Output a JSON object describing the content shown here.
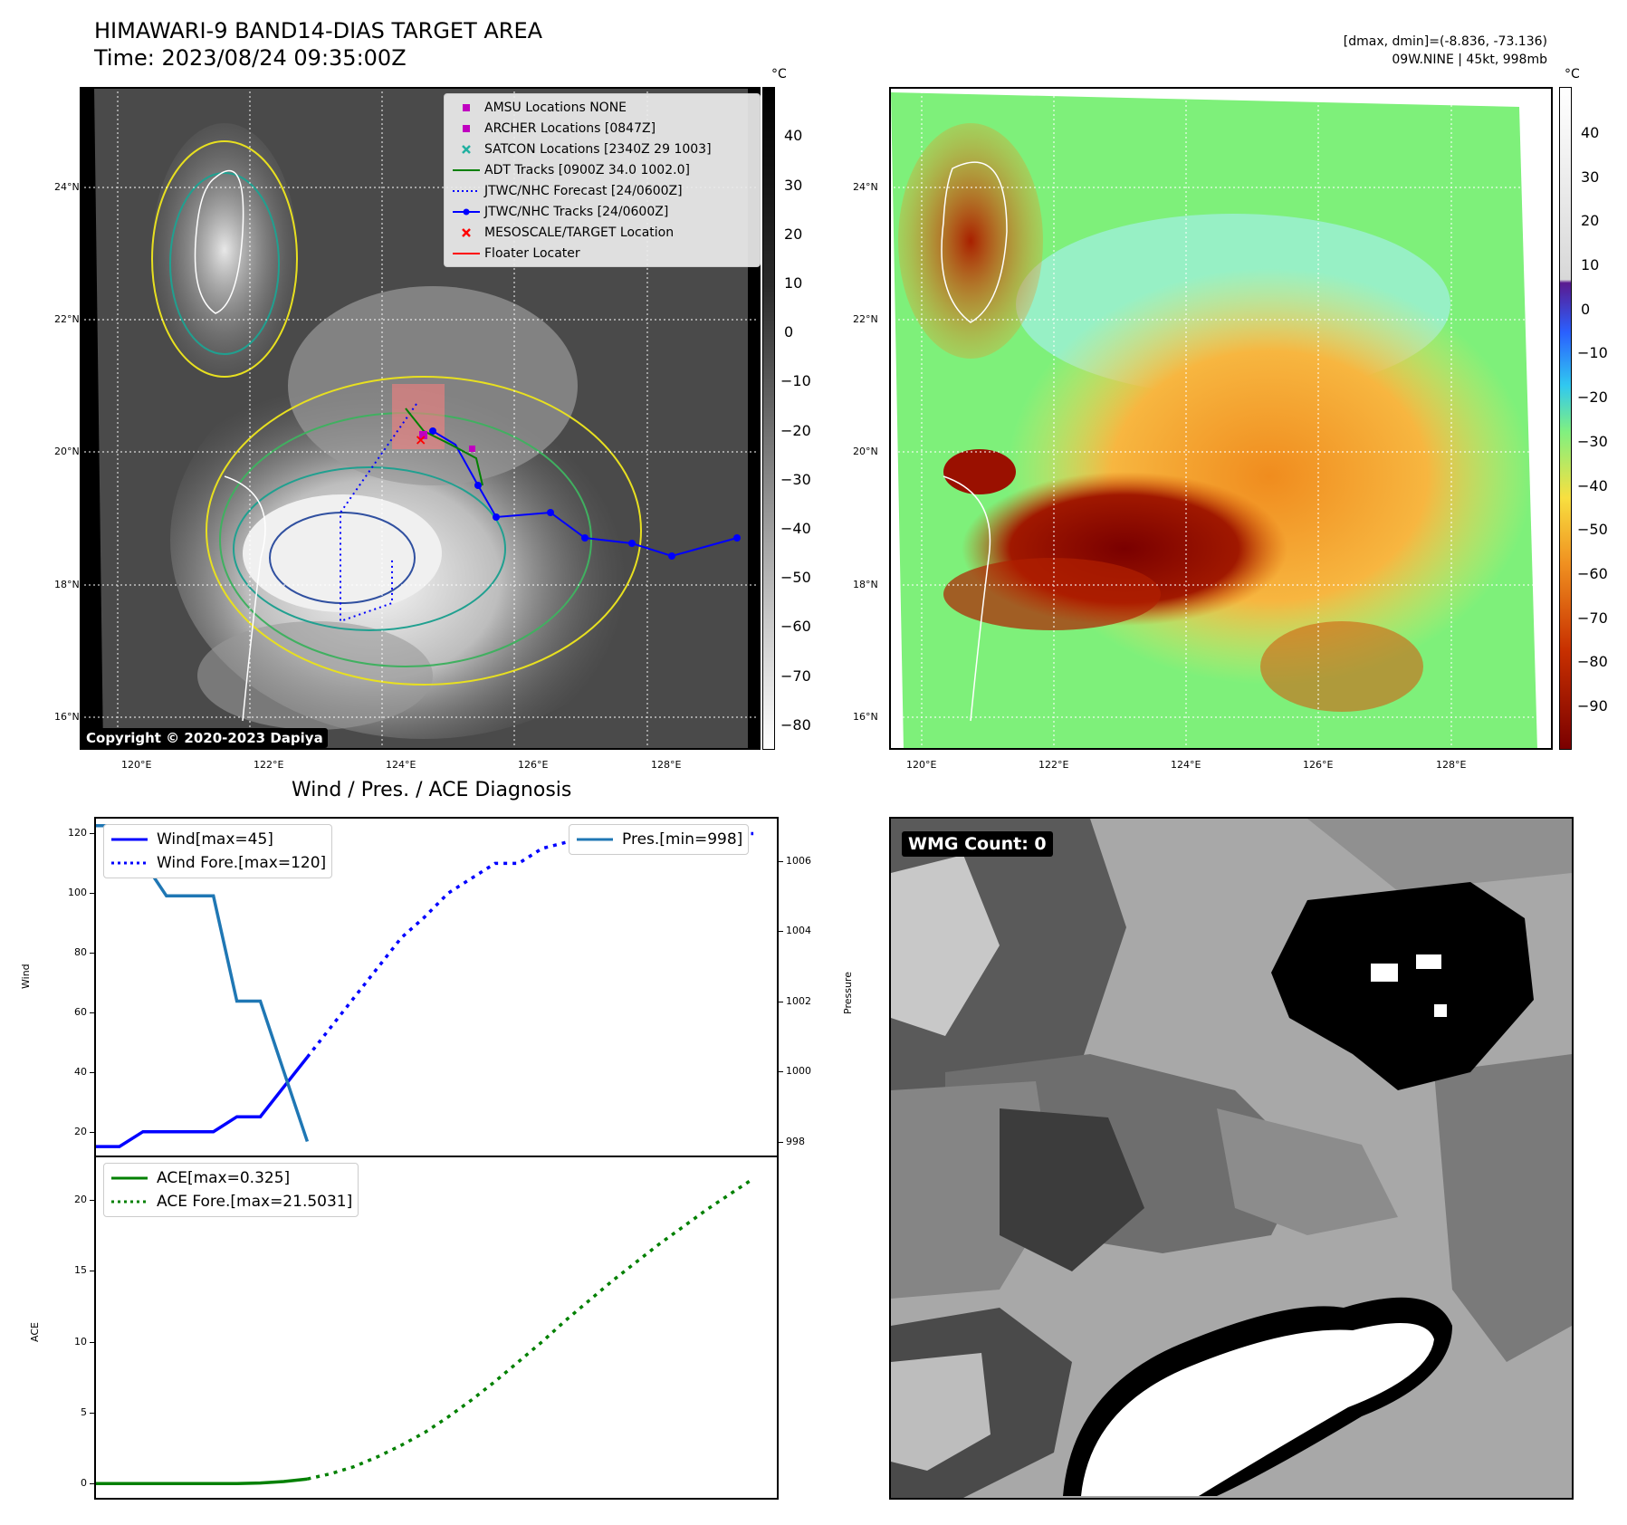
{
  "header": {
    "title_line1": "HIMAWARI-9 BAND14-DIAS TARGET AREA",
    "title_line2": "Time: 2023/08/24 09:35:00Z",
    "info_line1": "[dmax, dmin]=(-8.836, -73.136)",
    "info_line2": "09W.NINE | 45kt, 998mb"
  },
  "map_ticks": {
    "lat": [
      "24°N",
      "22°N",
      "20°N",
      "18°N",
      "16°N"
    ],
    "lon": [
      "120°E",
      "122°E",
      "124°E",
      "126°E",
      "128°E"
    ]
  },
  "map1": {
    "colorbar_unit": "°C",
    "colorbar_ticks": [
      "40",
      "30",
      "20",
      "10",
      "0",
      "−10",
      "−20",
      "−30",
      "−40",
      "−50",
      "−60",
      "−70",
      "−80"
    ],
    "copyright": "Copyright © 2020-2023 Dapiya",
    "legend": [
      {
        "label": "AMSU Locations NONE",
        "marker": "square",
        "color": "#c000c0"
      },
      {
        "label": "ARCHER Locations [0847Z]",
        "marker": "square",
        "color": "#c000c0"
      },
      {
        "label": "SATCON Locations [2340Z 29 1003]",
        "marker": "x",
        "color": "#20b0a0"
      },
      {
        "label": "ADT Tracks [0900Z 34.0 1002.0]",
        "marker": "line",
        "color": "#008000"
      },
      {
        "label": "JTWC/NHC Forecast [24/0600Z]",
        "marker": "dotted",
        "color": "#0000ff"
      },
      {
        "label": "JTWC/NHC Tracks [24/0600Z]",
        "marker": "line-dot",
        "color": "#0000ff"
      },
      {
        "label": "MESOSCALE/TARGET Location",
        "marker": "x",
        "color": "#ff0000"
      },
      {
        "label": "Floater Locater",
        "marker": "line",
        "color": "#ff0000"
      }
    ]
  },
  "map2": {
    "colorbar_unit": "°C",
    "colorbar_ticks": [
      "40",
      "30",
      "20",
      "10",
      "0",
      "−10",
      "−20",
      "−30",
      "−40",
      "−50",
      "−60",
      "−70",
      "−80",
      "−90"
    ]
  },
  "diag": {
    "title": "Wind / Pres. / ACE Diagnosis",
    "wind_ylabel": "Wind",
    "pres_ylabel": "Pressure",
    "ace_ylabel": "ACE",
    "wind_ticks": [
      "120",
      "100",
      "80",
      "60",
      "40",
      "20"
    ],
    "pres_ticks": [
      "1006",
      "1004",
      "1002",
      "1000",
      "998"
    ],
    "ace_ticks": [
      "20",
      "15",
      "10",
      "5",
      "0"
    ],
    "legend_wind": "Wind[max=45]",
    "legend_wind_fore": "Wind Fore.[max=120]",
    "legend_pres": "Pres.[min=998]",
    "legend_ace": "ACE[max=0.325]",
    "legend_ace_fore": "ACE Fore.[max=21.5031]"
  },
  "wmg": {
    "label": "WMG Count: 0"
  },
  "chart_data": [
    {
      "type": "line",
      "title": "Wind / Pres. / ACE Diagnosis",
      "ylabel": "Wind",
      "ylim": [
        12,
        125
      ],
      "xlim": [
        0,
        29
      ],
      "series": [
        {
          "name": "Wind[max=45]",
          "color": "#0000ff",
          "x": [
            0,
            1,
            2,
            3,
            4,
            5,
            6,
            7,
            8,
            9
          ],
          "values": [
            15,
            15,
            20,
            20,
            20,
            20,
            25,
            25,
            35,
            45
          ]
        },
        {
          "name": "Wind Fore.[max=120]",
          "color": "#0000ff",
          "style": "dotted",
          "x": [
            9,
            10,
            11,
            12,
            13,
            14,
            15,
            16,
            17,
            18,
            19,
            20,
            21,
            22,
            23,
            24,
            25,
            26,
            27,
            28
          ],
          "values": [
            45,
            55,
            65,
            75,
            85,
            92,
            100,
            105,
            110,
            110,
            115,
            117,
            119,
            120,
            120,
            120,
            120,
            120,
            120,
            120
          ]
        }
      ]
    },
    {
      "type": "line",
      "ylabel": "Pressure",
      "ylim": [
        997.6,
        1007.2
      ],
      "xlim": [
        0,
        29
      ],
      "series": [
        {
          "name": "Pres.[min=998]",
          "color": "#1f77b4",
          "x": [
            0,
            1,
            2,
            3,
            4,
            5,
            6,
            7,
            8,
            9
          ],
          "values": [
            1007,
            1007,
            1006,
            1005,
            1005,
            1005,
            1002,
            1002,
            1000,
            998
          ]
        }
      ]
    },
    {
      "type": "line",
      "ylabel": "ACE",
      "ylim": [
        -1,
        23
      ],
      "xlim": [
        0,
        29
      ],
      "series": [
        {
          "name": "ACE[max=0.325]",
          "color": "#008000",
          "x": [
            0,
            1,
            2,
            3,
            4,
            5,
            6,
            7,
            8,
            9
          ],
          "values": [
            0,
            0,
            0,
            0,
            0,
            0,
            0,
            0.05,
            0.15,
            0.325
          ]
        },
        {
          "name": "ACE Fore.[max=21.5031]",
          "color": "#008000",
          "style": "dotted",
          "x": [
            9,
            10,
            11,
            12,
            13,
            14,
            15,
            16,
            17,
            18,
            19,
            20,
            21,
            22,
            23,
            24,
            25,
            26,
            27,
            28
          ],
          "values": [
            0.325,
            0.7,
            1.2,
            1.9,
            2.7,
            3.6,
            4.7,
            5.9,
            7.2,
            8.6,
            10.0,
            11.5,
            12.9,
            14.3,
            15.6,
            16.9,
            18.1,
            19.3,
            20.4,
            21.5031
          ]
        }
      ]
    }
  ]
}
